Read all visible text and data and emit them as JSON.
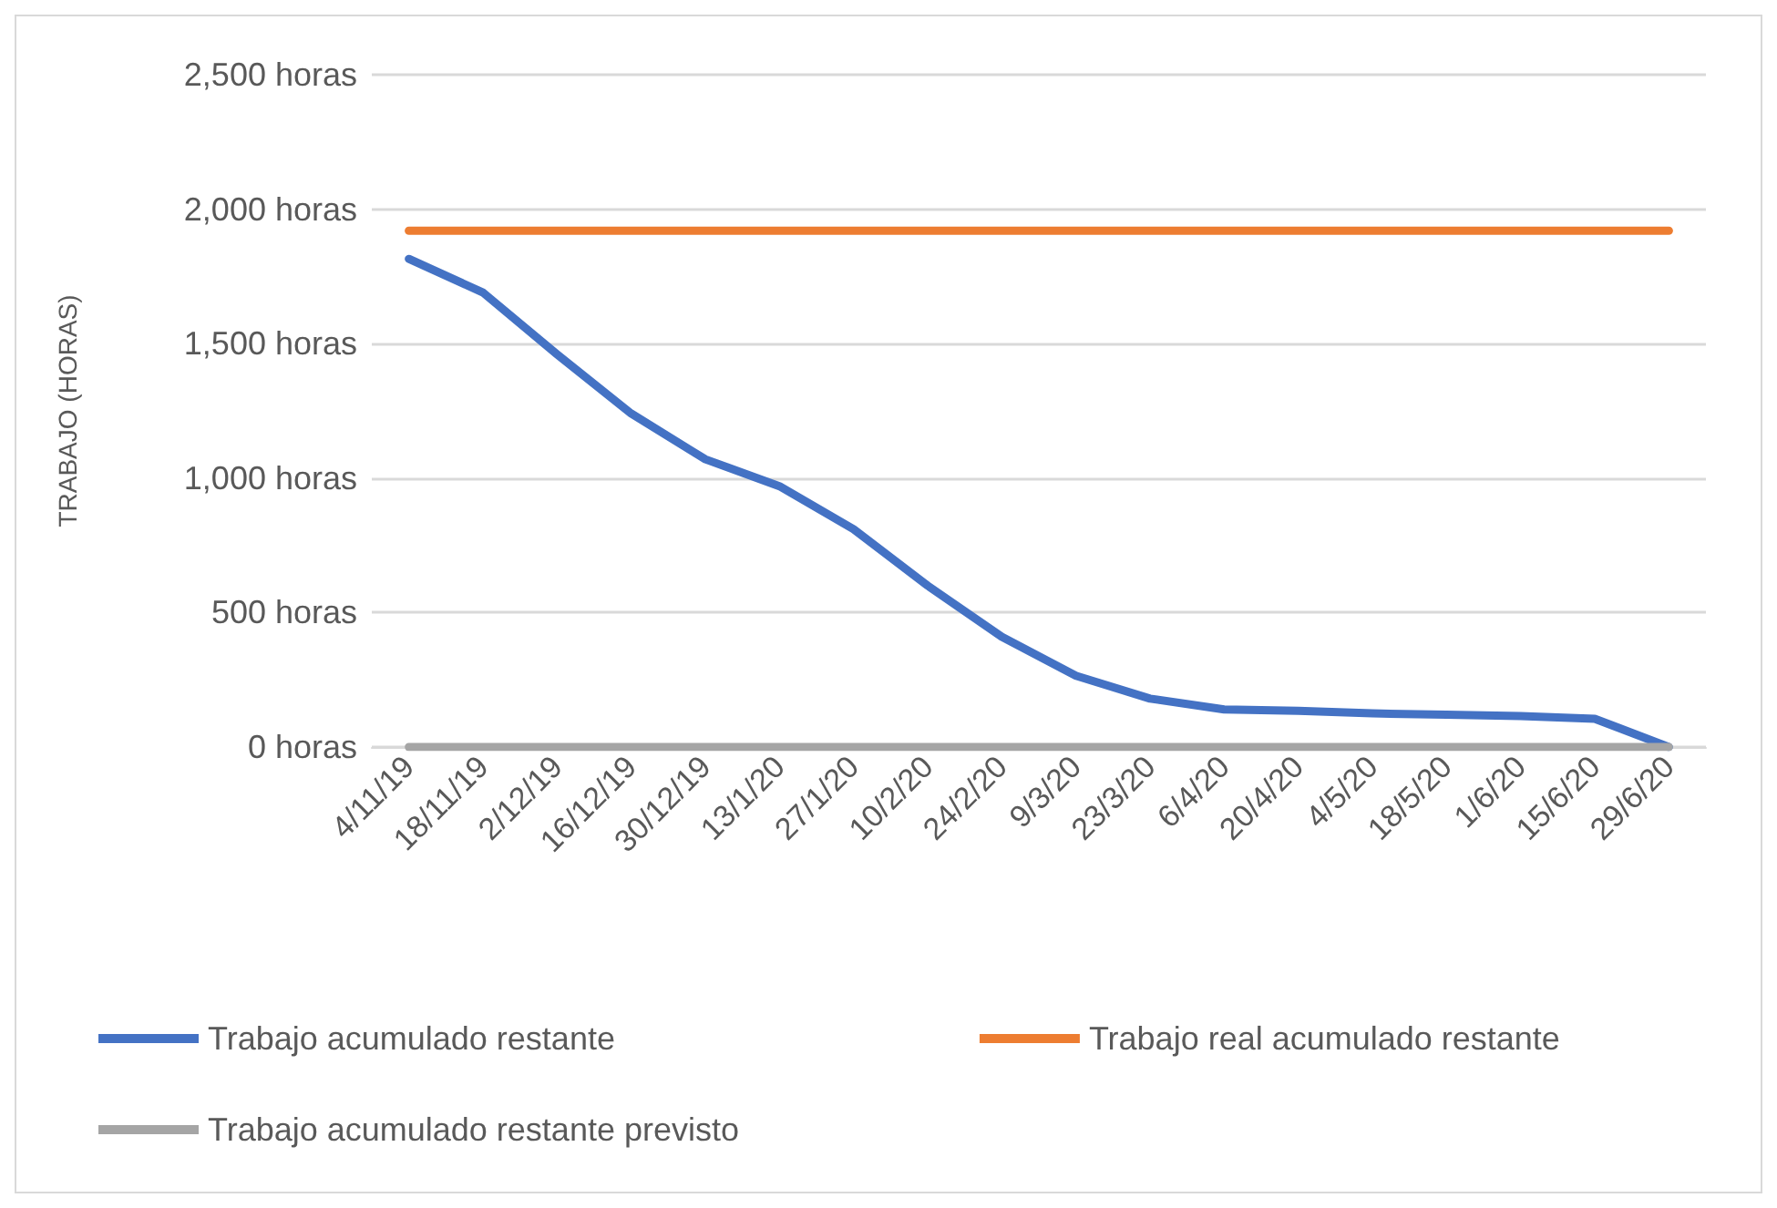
{
  "chart_data": {
    "type": "line",
    "ylabel": "TRABAJO (HORAS)",
    "categories": [
      "4/11/19",
      "18/11/19",
      "2/12/19",
      "16/12/19",
      "30/12/19",
      "13/1/20",
      "27/1/20",
      "10/2/20",
      "24/2/20",
      "9/3/20",
      "23/3/20",
      "6/4/20",
      "20/4/20",
      "4/5/20",
      "18/5/20",
      "1/6/20",
      "15/6/20",
      "29/6/20"
    ],
    "series": [
      {
        "name": "Trabajo acumulado restante",
        "color": "#4472c4",
        "values": [
          1815,
          1690,
          1460,
          1240,
          1070,
          970,
          810,
          600,
          410,
          265,
          180,
          140,
          135,
          125,
          120,
          115,
          105,
          0
        ]
      },
      {
        "name": "Trabajo real acumulado restante",
        "color": "#ed7d31",
        "values": [
          1920,
          1920,
          1920,
          1920,
          1920,
          1920,
          1920,
          1920,
          1920,
          1920,
          1920,
          1920,
          1920,
          1920,
          1920,
          1920,
          1920,
          1920
        ]
      },
      {
        "name": "Trabajo acumulado restante previsto",
        "color": "#a5a5a5",
        "values": [
          0,
          0,
          0,
          0,
          0,
          0,
          0,
          0,
          0,
          0,
          0,
          0,
          0,
          0,
          0,
          0,
          0,
          0
        ]
      }
    ],
    "ylim": [
      0,
      2500
    ],
    "yticks": [
      {
        "value": 0,
        "label": "0 horas"
      },
      {
        "value": 500,
        "label": "500 horas"
      },
      {
        "value": 1000,
        "label": "1,000 horas"
      },
      {
        "value": 1500,
        "label": "1,500 horas"
      },
      {
        "value": 2000,
        "label": "2,000 horas"
      },
      {
        "value": 2500,
        "label": "2,500 horas"
      }
    ],
    "grid": "y",
    "legend": "bottom",
    "marker": "none",
    "line_style": "solid"
  }
}
